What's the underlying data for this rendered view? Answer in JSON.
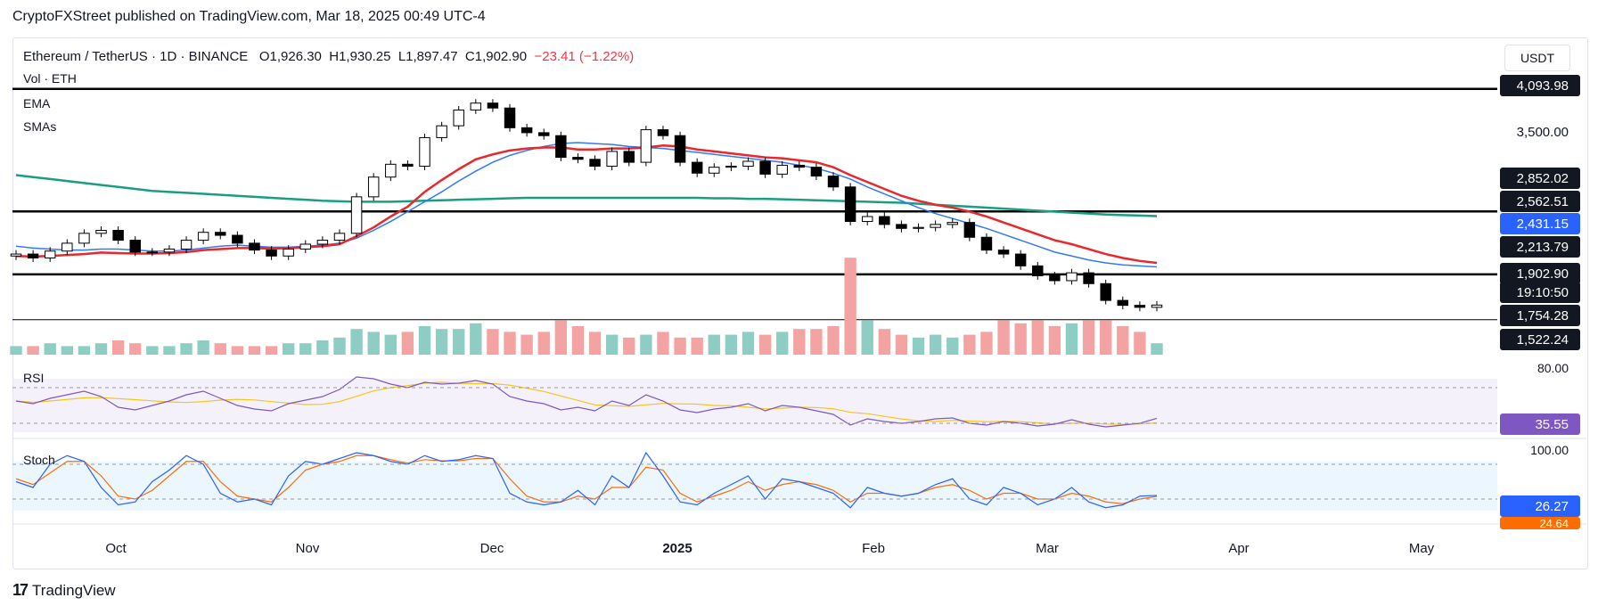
{
  "caption": "CryptoFXStreet published on TradingView.com, Mar 18, 2025 00:49 UTC-4",
  "header": {
    "symbol": "Ethereum / TetherUS · 1D · BINANCE",
    "open": "O1,926.30",
    "high": "H1,930.25",
    "low": "L1,897.47",
    "close": "C1,902.90",
    "change": "−23.41 (−1.22%)",
    "currency": "USDT"
  },
  "legends": {
    "vol": "Vol · ETH",
    "ema": "EMA",
    "smas": "SMAs",
    "rsi": "RSI",
    "stoch": "Stoch"
  },
  "colors": {
    "bull": "#ffffff",
    "bear": "#000000",
    "ema": "#e8282b",
    "sma50": "#3179f5",
    "sma200": "#1a9e82",
    "rsi": "#7e57c2",
    "rsi_ma": "#f5c518",
    "stoch_k": "#2962ff",
    "stoch_d": "#ff6d00",
    "vol_up": "#8ecdc3",
    "vol_down": "#f4a3a3"
  },
  "price_labels": [
    {
      "value": 4093.98,
      "text": "4,093.98",
      "style": "dark"
    },
    {
      "value": 3500.0,
      "text": "3,500.00",
      "style": "plain"
    },
    {
      "value": 2852.02,
      "text": "2,852.02",
      "style": "dark"
    },
    {
      "value": 2562.51,
      "text": "2,562.51",
      "style": "dark"
    },
    {
      "value": 2431.15,
      "text": "2,431.15",
      "style": "blue"
    },
    {
      "value": 2213.79,
      "text": "2,213.79",
      "style": "dark"
    },
    {
      "value": 1902.9,
      "text": "1,902.90",
      "style": "dark"
    },
    {
      "value": 1860.0,
      "text": "19:10:50",
      "style": "dark"
    },
    {
      "value": 1754.28,
      "text": "1,754.28",
      "style": "dark"
    },
    {
      "value": 1522.24,
      "text": "1,522.24",
      "style": "dark"
    }
  ],
  "time_axis": [
    "Oct",
    "Nov",
    "Dec",
    "2025",
    "Feb",
    "Mar",
    "Apr",
    "May"
  ],
  "indicator_labels": {
    "rsi_top": "80.00",
    "rsi_value": "35.55",
    "stoch_top": "100.00",
    "stoch_k": "26.27",
    "stoch_d": "24.64"
  },
  "brand": "TradingView",
  "chart_data": {
    "type": "candlestick",
    "title": "Ethereum / TetherUS · 1D · BINANCE",
    "ylabel": "USDT",
    "ylim": [
      1400,
      4200
    ],
    "horizontal_levels": [
      4093.98,
      2852.02,
      2213.79,
      1754.28
    ],
    "ohlc_summary_close": [
      2420,
      2380,
      2450,
      2530,
      2630,
      2660,
      2560,
      2440,
      2440,
      2470,
      2560,
      2640,
      2610,
      2530,
      2460,
      2400,
      2470,
      2520,
      2560,
      2630,
      3000,
      3200,
      3330,
      3310,
      3600,
      3720,
      3880,
      3950,
      3900,
      3700,
      3650,
      3620,
      3400,
      3380,
      3310,
      3460,
      3350,
      3680,
      3620,
      3350,
      3240,
      3300,
      3310,
      3360,
      3230,
      3320,
      3300,
      3210,
      3100,
      2750,
      2800,
      2720,
      2680,
      2690,
      2720,
      2740,
      2590,
      2460,
      2420,
      2300,
      2200,
      2150,
      2230,
      2120,
      1950,
      1900,
      1880,
      1902.9
    ],
    "ema": [
      2400,
      2395,
      2400,
      2410,
      2420,
      2435,
      2430,
      2425,
      2425,
      2430,
      2440,
      2460,
      2470,
      2480,
      2480,
      2475,
      2480,
      2490,
      2500,
      2520,
      2600,
      2690,
      2800,
      2900,
      3050,
      3170,
      3280,
      3380,
      3430,
      3470,
      3490,
      3500,
      3500,
      3480,
      3480,
      3490,
      3490,
      3500,
      3520,
      3510,
      3480,
      3460,
      3440,
      3420,
      3400,
      3390,
      3370,
      3350,
      3300,
      3220,
      3150,
      3080,
      3010,
      2960,
      2920,
      2890,
      2850,
      2800,
      2740,
      2680,
      2620,
      2560,
      2520,
      2470,
      2420,
      2380,
      2350,
      2330
    ],
    "sma50": [
      2500,
      2480,
      2470,
      2460,
      2460,
      2470,
      2470,
      2460,
      2450,
      2450,
      2460,
      2480,
      2500,
      2510,
      2500,
      2490,
      2490,
      2500,
      2510,
      2530,
      2580,
      2660,
      2750,
      2850,
      2950,
      3050,
      3160,
      3260,
      3350,
      3420,
      3470,
      3510,
      3540,
      3550,
      3540,
      3530,
      3510,
      3500,
      3490,
      3470,
      3450,
      3430,
      3410,
      3390,
      3370,
      3350,
      3320,
      3290,
      3240,
      3180,
      3100,
      3030,
      2960,
      2890,
      2830,
      2780,
      2730,
      2680,
      2620,
      2560,
      2500,
      2440,
      2400,
      2360,
      2330,
      2310,
      2300,
      2290
    ],
    "sma200": [
      3220,
      3200,
      3180,
      3160,
      3140,
      3120,
      3100,
      3080,
      3060,
      3050,
      3040,
      3030,
      3020,
      3010,
      3000,
      2990,
      2980,
      2970,
      2960,
      2955,
      2950,
      2950,
      2950,
      2955,
      2960,
      2965,
      2970,
      2975,
      2980,
      2985,
      2990,
      2990,
      2990,
      2990,
      2990,
      2990,
      2990,
      2990,
      2990,
      2990,
      2990,
      2985,
      2985,
      2980,
      2980,
      2975,
      2970,
      2965,
      2960,
      2955,
      2950,
      2945,
      2940,
      2930,
      2920,
      2910,
      2900,
      2890,
      2880,
      2870,
      2860,
      2850,
      2840,
      2830,
      2820,
      2815,
      2810,
      2805
    ],
    "volume": [
      3,
      3,
      4,
      3,
      3,
      4,
      5,
      4,
      3,
      3,
      4,
      5,
      4,
      3,
      3,
      3,
      4,
      4,
      5,
      6,
      9,
      8,
      7,
      8,
      10,
      9,
      9,
      11,
      9,
      8,
      7,
      8,
      12,
      10,
      8,
      7,
      6,
      7,
      8,
      6,
      6,
      7,
      7,
      8,
      7,
      8,
      9,
      9,
      10,
      34,
      12,
      9,
      7,
      6,
      7,
      6,
      7,
      8,
      12,
      11,
      12,
      10,
      11,
      12,
      12,
      10,
      8,
      4
    ],
    "rsi": [
      55,
      52,
      58,
      62,
      66,
      60,
      48,
      45,
      50,
      55,
      62,
      66,
      58,
      50,
      46,
      44,
      52,
      56,
      60,
      68,
      82,
      80,
      74,
      70,
      76,
      74,
      75,
      78,
      74,
      60,
      55,
      52,
      45,
      48,
      44,
      55,
      50,
      62,
      55,
      45,
      42,
      46,
      48,
      52,
      44,
      50,
      48,
      44,
      40,
      28,
      35,
      32,
      30,
      32,
      35,
      36,
      30,
      28,
      32,
      30,
      27,
      29,
      34,
      29,
      26,
      28,
      30,
      35.55
    ],
    "stoch_k": [
      50,
      40,
      80,
      95,
      85,
      40,
      10,
      15,
      50,
      70,
      95,
      80,
      30,
      15,
      20,
      10,
      60,
      85,
      80,
      90,
      100,
      95,
      85,
      80,
      95,
      85,
      88,
      95,
      90,
      30,
      15,
      10,
      15,
      35,
      10,
      60,
      40,
      100,
      60,
      15,
      10,
      30,
      45,
      60,
      20,
      55,
      50,
      40,
      30,
      5,
      40,
      30,
      25,
      30,
      45,
      55,
      20,
      10,
      40,
      30,
      10,
      20,
      40,
      15,
      5,
      10,
      25,
      26.27
    ],
    "stoch_d": [
      55,
      45,
      65,
      85,
      85,
      60,
      25,
      20,
      35,
      60,
      85,
      85,
      50,
      25,
      20,
      15,
      40,
      70,
      80,
      85,
      95,
      95,
      88,
      82,
      88,
      86,
      86,
      90,
      90,
      55,
      25,
      15,
      15,
      25,
      20,
      40,
      40,
      75,
      70,
      30,
      15,
      25,
      35,
      50,
      35,
      45,
      50,
      45,
      35,
      15,
      30,
      30,
      25,
      30,
      40,
      45,
      35,
      20,
      30,
      30,
      20,
      20,
      30,
      25,
      15,
      12,
      20,
      24.64
    ]
  }
}
